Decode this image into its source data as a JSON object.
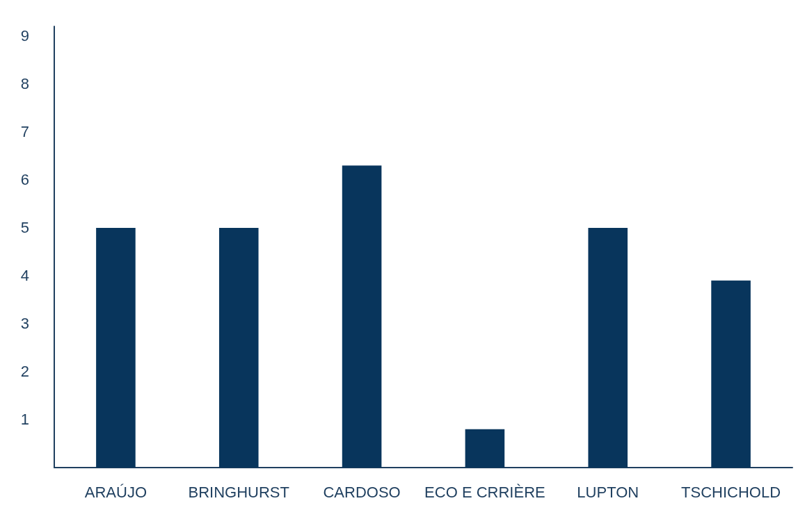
{
  "chart_data": {
    "type": "bar",
    "categories": [
      "ARAÚJO",
      "BRINGHURST",
      "CARDOSO",
      "ECO E CRRIÈRE",
      "LUPTON",
      "TSCHICHOLD"
    ],
    "values": [
      5,
      5,
      6.3,
      0.8,
      5,
      3.9
    ],
    "color": "#08355c",
    "ylim": [
      0,
      9.2
    ],
    "yticks": [
      1,
      2,
      3,
      4,
      5,
      6,
      7,
      8,
      9
    ],
    "grid": false
  }
}
